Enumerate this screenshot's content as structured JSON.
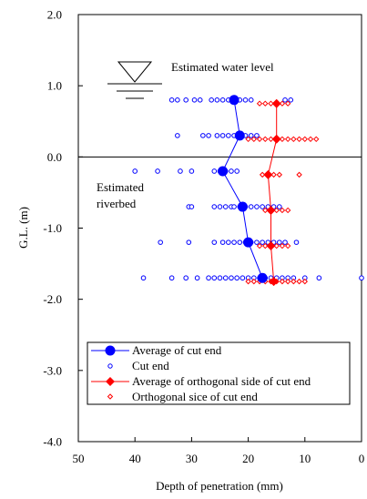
{
  "chart_data": {
    "type": "scatter",
    "xlabel": "Depth of penetration (mm)",
    "ylabel": "G.L. (m)",
    "xlim": [
      50,
      0
    ],
    "ylim": [
      -4.0,
      2.0
    ],
    "x_ticks": [
      "50",
      "40",
      "30",
      "20",
      "10",
      "0"
    ],
    "y_ticks": [
      "2.0",
      "1.0",
      "0.0",
      "-1.0",
      "-2.0",
      "-3.0",
      "-4.0"
    ],
    "annotations": {
      "water_level": "Estimated water level",
      "riverbed_line1": "Estimated",
      "riverbed_line2": "riverbed"
    },
    "legend": {
      "placement": "bottom",
      "entries": [
        "Average of cut end",
        "Cut end",
        "Average of orthogonal side of cut end",
        "Orthogonal sice of cut end"
      ]
    },
    "series": [
      {
        "name": "Average of cut end",
        "color": "#0000ff",
        "marker": "filled-circle",
        "line": true,
        "points": [
          [
            22.5,
            0.8
          ],
          [
            21.5,
            0.3
          ],
          [
            24.5,
            -0.2
          ],
          [
            21.0,
            -0.7
          ],
          [
            20.0,
            -1.2
          ],
          [
            17.5,
            -1.7
          ]
        ]
      },
      {
        "name": "Cut end",
        "color": "#0000ff",
        "marker": "open-circle",
        "line": false,
        "points": [
          [
            33.5,
            0.8
          ],
          [
            32.5,
            0.8
          ],
          [
            31.0,
            0.8
          ],
          [
            29.5,
            0.8
          ],
          [
            28.5,
            0.8
          ],
          [
            26.5,
            0.8
          ],
          [
            25.5,
            0.8
          ],
          [
            24.5,
            0.8
          ],
          [
            23.5,
            0.8
          ],
          [
            22.0,
            0.8
          ],
          [
            21.5,
            0.8
          ],
          [
            20.5,
            0.8
          ],
          [
            19.5,
            0.8
          ],
          [
            13.5,
            0.8
          ],
          [
            12.5,
            0.8
          ],
          [
            32.5,
            0.3
          ],
          [
            28.0,
            0.3
          ],
          [
            27.0,
            0.3
          ],
          [
            25.5,
            0.3
          ],
          [
            24.5,
            0.3
          ],
          [
            23.5,
            0.3
          ],
          [
            22.5,
            0.3
          ],
          [
            21.0,
            0.3
          ],
          [
            20.5,
            0.3
          ],
          [
            19.5,
            0.3
          ],
          [
            18.5,
            0.3
          ],
          [
            40.0,
            -0.2
          ],
          [
            36.0,
            -0.2
          ],
          [
            32.0,
            -0.2
          ],
          [
            30.0,
            -0.2
          ],
          [
            26.0,
            -0.2
          ],
          [
            25.0,
            -0.2
          ],
          [
            24.0,
            -0.2
          ],
          [
            23.0,
            -0.2
          ],
          [
            22.0,
            -0.2
          ],
          [
            30.5,
            -0.7
          ],
          [
            30.0,
            -0.7
          ],
          [
            26.0,
            -0.7
          ],
          [
            25.0,
            -0.7
          ],
          [
            24.0,
            -0.7
          ],
          [
            23.0,
            -0.7
          ],
          [
            22.5,
            -0.7
          ],
          [
            21.5,
            -0.7
          ],
          [
            20.5,
            -0.7
          ],
          [
            19.5,
            -0.7
          ],
          [
            18.5,
            -0.7
          ],
          [
            17.5,
            -0.7
          ],
          [
            16.5,
            -0.7
          ],
          [
            15.5,
            -0.7
          ],
          [
            14.5,
            -0.7
          ],
          [
            35.5,
            -1.2
          ],
          [
            30.5,
            -1.2
          ],
          [
            26.0,
            -1.2
          ],
          [
            24.5,
            -1.2
          ],
          [
            23.5,
            -1.2
          ],
          [
            22.5,
            -1.2
          ],
          [
            21.5,
            -1.2
          ],
          [
            20.5,
            -1.2
          ],
          [
            19.5,
            -1.2
          ],
          [
            18.5,
            -1.2
          ],
          [
            17.5,
            -1.2
          ],
          [
            16.5,
            -1.2
          ],
          [
            15.5,
            -1.2
          ],
          [
            14.5,
            -1.2
          ],
          [
            13.5,
            -1.2
          ],
          [
            11.5,
            -1.2
          ],
          [
            38.5,
            -1.7
          ],
          [
            33.5,
            -1.7
          ],
          [
            31.0,
            -1.7
          ],
          [
            29.0,
            -1.7
          ],
          [
            27.0,
            -1.7
          ],
          [
            26.0,
            -1.7
          ],
          [
            25.0,
            -1.7
          ],
          [
            24.0,
            -1.7
          ],
          [
            23.0,
            -1.7
          ],
          [
            22.0,
            -1.7
          ],
          [
            21.0,
            -1.7
          ],
          [
            20.0,
            -1.7
          ],
          [
            19.0,
            -1.7
          ],
          [
            18.0,
            -1.7
          ],
          [
            17.0,
            -1.7
          ],
          [
            16.0,
            -1.7
          ],
          [
            15.0,
            -1.7
          ],
          [
            14.0,
            -1.7
          ],
          [
            13.0,
            -1.7
          ],
          [
            12.0,
            -1.7
          ],
          [
            10.0,
            -1.7
          ],
          [
            7.5,
            -1.7
          ],
          [
            0.0,
            -1.7
          ]
        ]
      },
      {
        "name": "Average of orthogonal side of cut end",
        "color": "#ff0000",
        "marker": "filled-diamond",
        "line": true,
        "points": [
          [
            15.0,
            0.75
          ],
          [
            15.0,
            0.25
          ],
          [
            16.5,
            -0.25
          ],
          [
            16.0,
            -0.75
          ],
          [
            16.0,
            -1.25
          ],
          [
            15.5,
            -1.75
          ]
        ]
      },
      {
        "name": "Orthogonal sice of cut end",
        "color": "#ff0000",
        "marker": "open-diamond",
        "line": false,
        "points": [
          [
            18.0,
            0.75
          ],
          [
            17.0,
            0.75
          ],
          [
            16.0,
            0.75
          ],
          [
            15.0,
            0.75
          ],
          [
            14.0,
            0.75
          ],
          [
            13.0,
            0.75
          ],
          [
            20.0,
            0.25
          ],
          [
            19.0,
            0.25
          ],
          [
            18.0,
            0.25
          ],
          [
            17.0,
            0.25
          ],
          [
            16.0,
            0.25
          ],
          [
            15.0,
            0.25
          ],
          [
            14.0,
            0.25
          ],
          [
            13.0,
            0.25
          ],
          [
            12.0,
            0.25
          ],
          [
            11.0,
            0.25
          ],
          [
            10.0,
            0.25
          ],
          [
            9.0,
            0.25
          ],
          [
            8.0,
            0.25
          ],
          [
            17.5,
            -0.25
          ],
          [
            16.5,
            -0.25
          ],
          [
            15.5,
            -0.25
          ],
          [
            14.5,
            -0.25
          ],
          [
            11.0,
            -0.25
          ],
          [
            17.0,
            -0.75
          ],
          [
            16.0,
            -0.75
          ],
          [
            15.0,
            -0.75
          ],
          [
            14.0,
            -0.75
          ],
          [
            13.0,
            -0.75
          ],
          [
            18.0,
            -1.25
          ],
          [
            17.0,
            -1.25
          ],
          [
            16.0,
            -1.25
          ],
          [
            15.0,
            -1.25
          ],
          [
            14.0,
            -1.25
          ],
          [
            13.0,
            -1.25
          ],
          [
            20.0,
            -1.75
          ],
          [
            19.0,
            -1.75
          ],
          [
            18.0,
            -1.75
          ],
          [
            17.0,
            -1.75
          ],
          [
            16.0,
            -1.75
          ],
          [
            15.0,
            -1.75
          ],
          [
            14.0,
            -1.75
          ],
          [
            13.0,
            -1.75
          ],
          [
            12.0,
            -1.75
          ],
          [
            11.0,
            -1.75
          ],
          [
            10.0,
            -1.75
          ]
        ]
      }
    ]
  }
}
